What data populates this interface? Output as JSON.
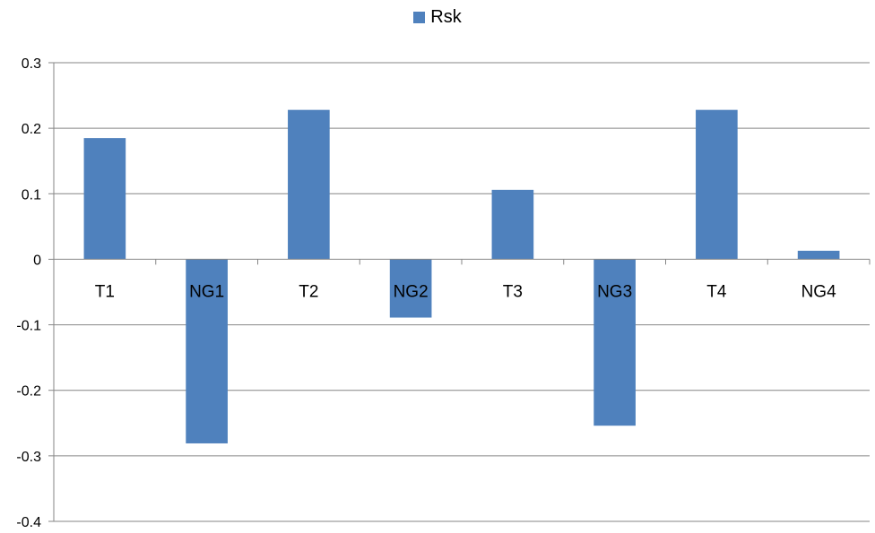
{
  "legend": {
    "label": "Rsk",
    "swatch_color": "#4F81BD"
  },
  "chart_data": {
    "type": "bar",
    "categories": [
      "T1",
      "NG1",
      "T2",
      "NG2",
      "T3",
      "NG3",
      "T4",
      "NG4"
    ],
    "series": [
      {
        "name": "Rsk",
        "color": "#4F81BD",
        "values": [
          0.185,
          -0.281,
          0.228,
          -0.089,
          0.106,
          -0.254,
          0.228,
          0.013
        ]
      }
    ],
    "ylim": [
      -0.4,
      0.3
    ],
    "yticks": [
      "0.3",
      "0.2",
      "0.1",
      "0",
      "-0.1",
      "-0.2",
      "-0.3",
      "-0.4"
    ],
    "ytick_values": [
      0.3,
      0.2,
      0.1,
      0,
      -0.1,
      -0.2,
      -0.3,
      -0.4
    ],
    "grid": true,
    "legend_position": "top-center",
    "title": "",
    "xlabel": "",
    "ylabel": ""
  }
}
